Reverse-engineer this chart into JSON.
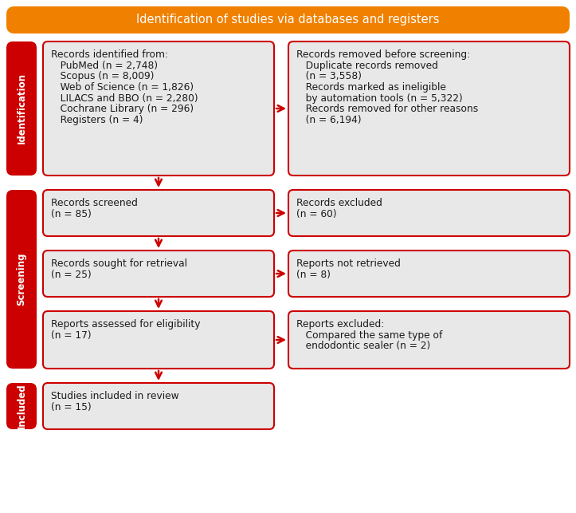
{
  "title": "Identification of studies via databases and registers",
  "title_bg": "#F08000",
  "title_text_color": "#FFFFFF",
  "box_bg": "#E8E8E8",
  "box_border": "#CC0000",
  "arrow_color": "#CC0000",
  "side_label_bg": "#CC0000",
  "side_label_text_color": "#FFFFFF",
  "white_bg": "#FFFFFF",
  "boxes": {
    "id_left_line1": "Records identified from:",
    "id_left_line2": "   PubMed (n = 2,748)",
    "id_left_line3": "   Scopus (n = 8,009)",
    "id_left_line4": "   Web of Science (n = 1,826)",
    "id_left_line5": "   LILACS and BBO (n = 2,280)",
    "id_left_line6": "   Cochrane Library (n = 296)",
    "id_left_line7": "   Registers (n = 4)",
    "id_right_line1": "Records removed before screening:",
    "id_right_line2": "   Duplicate records removed",
    "id_right_line3": "   (n = 3,558)",
    "id_right_line4": "   Records marked as ineligible",
    "id_right_line5": "   by automation tools (n = 5,322)",
    "id_right_line6": "   Records removed for other reasons",
    "id_right_line7": "   (n = 6,194)",
    "s1_left_line1": "Records screened",
    "s1_left_line2": "(n = 85)",
    "s1_right_line1": "Records excluded",
    "s1_right_line2": "(n = 60)",
    "s2_left_line1": "Records sought for retrieval",
    "s2_left_line2": "(n = 25)",
    "s2_right_line1": "Reports not retrieved",
    "s2_right_line2": "(n = 8)",
    "s3_left_line1": "Reports assessed for eligibility",
    "s3_left_line2": "(n = 17)",
    "s3_right_line1": "Reports excluded:",
    "s3_right_line2": "   Compared the same type of",
    "s3_right_line3": "   endodontic sealer (n = 2)",
    "inc_line1": "Studies included in review",
    "inc_line2": "(n = 15)"
  },
  "id_left_text": "Records identified from:\n   PubMed (  η = 2,748)\n   Scopus ( η = 8,009)\n   Web of Science ( η = 1,826)\n   LILACS and BBO ( η = 2,280)\n   Cochrane Library ( η = 296)\n   Registers ( η = 4)",
  "id_right_text": "Records removed before screening:\n   Duplicate records removed\n   ( η = 3,558)\n   Records marked as ineligible\n   by automation tools ( η = 5,322)\n   Records removed for other reasons\n   ( η = 6,194)",
  "s1_left_text": "Records screened\n( η = 85)",
  "s1_right_text": "Records excluded\n( η = 60)",
  "s2_left_text": "Records sought for retrieval\n( η = 25)",
  "s2_right_text": "Reports not retrieved\n( η = 8)",
  "s3_left_text": "Reports assessed for eligibility\n( η = 17)",
  "s3_right_text": "Reports excluded:\n   Compared the same type of\n   endodontic sealer ( η = 2)",
  "inc_text": "Studies included in review\n( η = 15)"
}
